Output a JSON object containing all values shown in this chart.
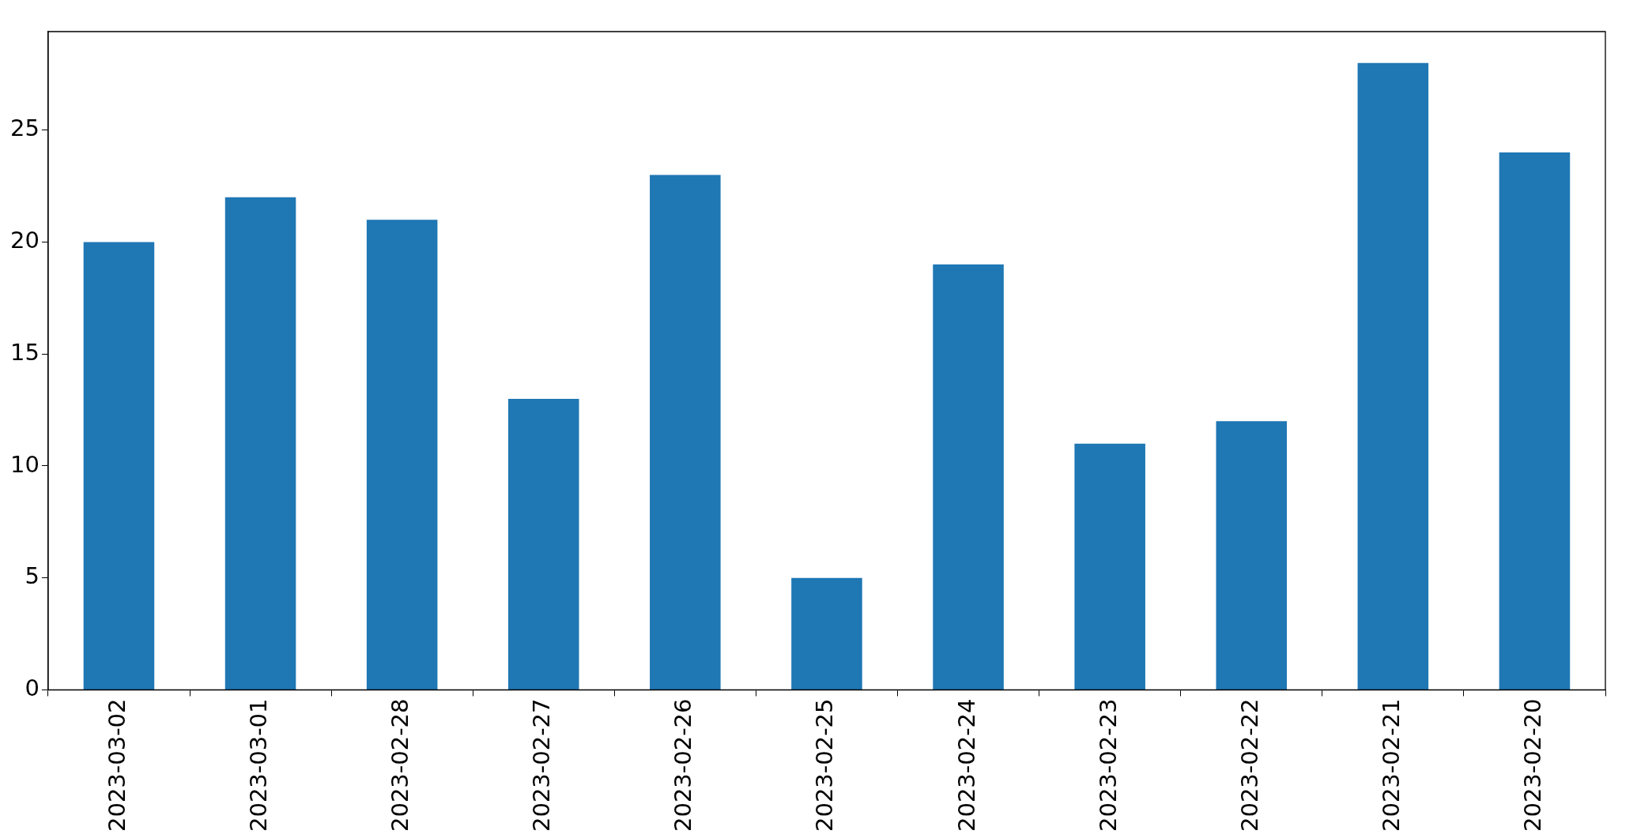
{
  "chart_data": {
    "type": "bar",
    "categories": [
      "2023-03-02",
      "2023-03-01",
      "2023-02-28",
      "2023-02-27",
      "2023-02-26",
      "2023-02-25",
      "2023-02-24",
      "2023-02-23",
      "2023-02-22",
      "2023-02-21",
      "2023-02-20"
    ],
    "values": [
      20,
      22,
      21,
      13,
      23,
      5,
      19,
      11,
      12,
      28,
      24
    ],
    "color": "#1f77b4",
    "ylim": [
      0,
      29.4
    ],
    "yticks": [
      0,
      5,
      10,
      15,
      20,
      25
    ],
    "legend": false
  }
}
